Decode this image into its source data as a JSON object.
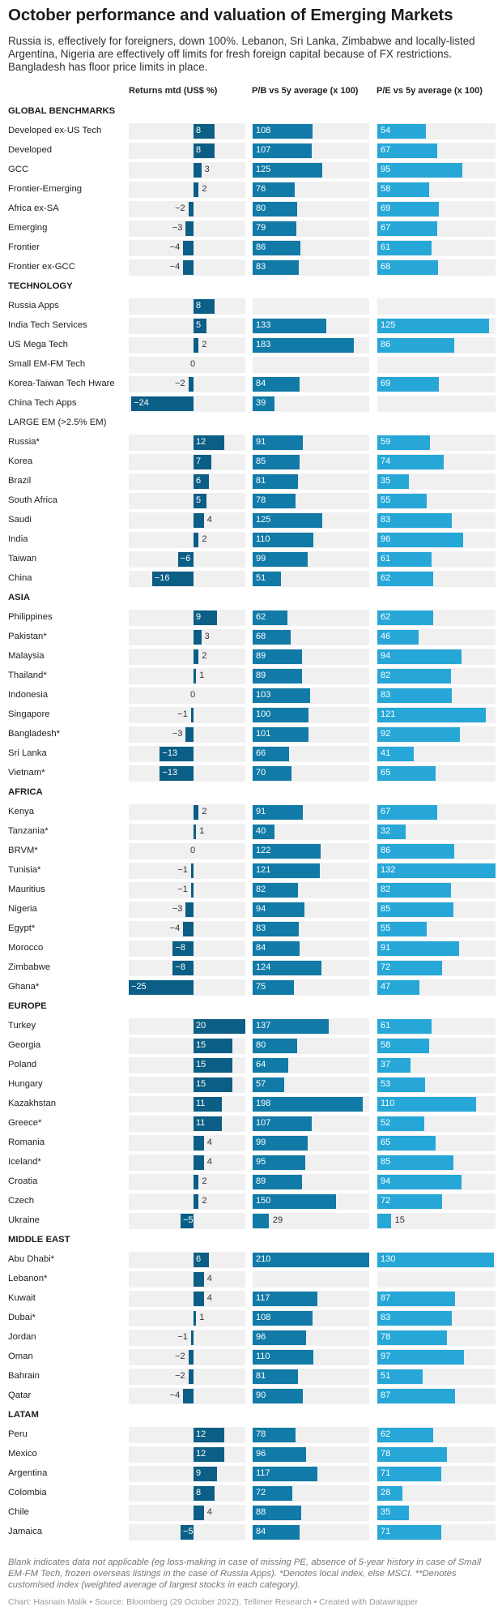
{
  "title": "October performance and valuation of Emerging Markets",
  "subtitle": "Russia is, effectively for foreigners, down 100%. Lebanon, Sri Lanka, Zimbabwe and locally-listed Argentina, Nigeria are effectively off limits for fresh foreign capital because of FX restrictions. Bangladesh has floor price limits in place.",
  "notes": "Blank indicates data not applicable (eg loss-making in case of missing PE, absence of 5-year history in case of Small EM-FM Tech, frozen overseas listings in the case of Russia Apps). *Denotes local index, else MSCI. **Denotes customised index (weighted average of largest stocks in each category).",
  "credit": "Chart: Hasnain Malik • Source: Bloomberg (29 October 2022), Tellimer Research • Created with Datawrapper",
  "colors": {
    "returns_bar": "#0b5e85",
    "pb_bar": "#117aa7",
    "pe_bar": "#26a7d8",
    "cell_bg": "#f0f0f0",
    "value_inside": "#ffffff",
    "value_outside": "#333333"
  },
  "chart_data": {
    "type": "bar",
    "columns": [
      "Returns mtd (US$ %)",
      "P/B vs 5y average (x 100)",
      "P/E vs 5y average (x 100)"
    ],
    "scales": {
      "returns": [
        -25,
        20
      ],
      "pb": [
        0,
        210
      ],
      "pe": [
        0,
        132
      ]
    },
    "rows": [
      {
        "label": "GLOBAL BENCHMARKS",
        "section": true
      },
      {
        "label": "Developed ex-US Tech",
        "ret": 8,
        "pb": 108,
        "pe": 54
      },
      {
        "label": "Developed",
        "ret": 8,
        "pb": 107,
        "pe": 67
      },
      {
        "label": "GCC",
        "ret": 3,
        "pb": 125,
        "pe": 95
      },
      {
        "label": "Frontier-Emerging",
        "ret": 2,
        "pb": 76,
        "pe": 58
      },
      {
        "label": "Africa ex-SA",
        "ret": -2,
        "pb": 80,
        "pe": 69
      },
      {
        "label": "Emerging",
        "ret": -3,
        "pb": 79,
        "pe": 67
      },
      {
        "label": "Frontier",
        "ret": -4,
        "pb": 86,
        "pe": 61
      },
      {
        "label": "Frontier ex-GCC",
        "ret": -4,
        "pb": 83,
        "pe": 68
      },
      {
        "label": "TECHNOLOGY",
        "section": true
      },
      {
        "label": "Russia Apps",
        "ret": 8,
        "pb": null,
        "pe": null
      },
      {
        "label": "India Tech Services",
        "ret": 5,
        "pb": 133,
        "pe": 125
      },
      {
        "label": "US Mega Tech",
        "ret": 2,
        "pb": 183,
        "pe": 86
      },
      {
        "label": "Small EM-FM Tech",
        "ret": 0,
        "pb": null,
        "pe": null
      },
      {
        "label": "Korea-Taiwan Tech Hware",
        "ret": -2,
        "pb": 84,
        "pe": 69
      },
      {
        "label": "China Tech Apps",
        "ret": -24,
        "pb": 39,
        "pe": null
      },
      {
        "label": "LARGE EM (>2.5% EM)",
        "section": true,
        "plain": true
      },
      {
        "label": "Russia*",
        "ret": 12,
        "pb": 91,
        "pe": 59
      },
      {
        "label": "Korea",
        "ret": 7,
        "pb": 85,
        "pe": 74
      },
      {
        "label": "Brazil",
        "ret": 6,
        "pb": 81,
        "pe": 35
      },
      {
        "label": "South Africa",
        "ret": 5,
        "pb": 78,
        "pe": 55
      },
      {
        "label": "Saudi",
        "ret": 4,
        "pb": 125,
        "pe": 83
      },
      {
        "label": "India",
        "ret": 2,
        "pb": 110,
        "pe": 96
      },
      {
        "label": "Taiwan",
        "ret": -6,
        "pb": 99,
        "pe": 61
      },
      {
        "label": "China",
        "ret": -16,
        "pb": 51,
        "pe": 62
      },
      {
        "label": "ASIA",
        "section": true
      },
      {
        "label": "Philippines",
        "ret": 9,
        "pb": 62,
        "pe": 62
      },
      {
        "label": "Pakistan*",
        "ret": 3,
        "pb": 68,
        "pe": 46
      },
      {
        "label": "Malaysia",
        "ret": 2,
        "pb": 89,
        "pe": 94
      },
      {
        "label": "Thailand*",
        "ret": 1,
        "pb": 89,
        "pe": 82
      },
      {
        "label": "Indonesia",
        "ret": 0,
        "pb": 103,
        "pe": 83
      },
      {
        "label": "Singapore",
        "ret": -1,
        "pb": 100,
        "pe": 121
      },
      {
        "label": "Bangladesh*",
        "ret": -3,
        "pb": 101,
        "pe": 92
      },
      {
        "label": "Sri Lanka",
        "ret": -13,
        "pb": 66,
        "pe": 41
      },
      {
        "label": "Vietnam*",
        "ret": -13,
        "pb": 70,
        "pe": 65
      },
      {
        "label": "AFRICA",
        "section": true
      },
      {
        "label": "Kenya",
        "ret": 2,
        "pb": 91,
        "pe": 67
      },
      {
        "label": "Tanzania*",
        "ret": 1,
        "pb": 40,
        "pe": 32
      },
      {
        "label": "BRVM*",
        "ret": 0,
        "pb": 122,
        "pe": 86
      },
      {
        "label": "Tunisia*",
        "ret": -1,
        "pb": 121,
        "pe": 132
      },
      {
        "label": "Mauritius",
        "ret": -1,
        "pb": 82,
        "pe": 82
      },
      {
        "label": "Nigeria",
        "ret": -3,
        "pb": 94,
        "pe": 85
      },
      {
        "label": "Egypt*",
        "ret": -4,
        "pb": 83,
        "pe": 55
      },
      {
        "label": "Morocco",
        "ret": -8,
        "pb": 84,
        "pe": 91
      },
      {
        "label": "Zimbabwe",
        "ret": -8,
        "pb": 124,
        "pe": 72
      },
      {
        "label": "Ghana*",
        "ret": -25,
        "pb": 75,
        "pe": 47
      },
      {
        "label": "EUROPE",
        "section": true
      },
      {
        "label": "Turkey",
        "ret": 20,
        "pb": 137,
        "pe": 61
      },
      {
        "label": "Georgia",
        "ret": 15,
        "pb": 80,
        "pe": 58
      },
      {
        "label": "Poland",
        "ret": 15,
        "pb": 64,
        "pe": 37
      },
      {
        "label": "Hungary",
        "ret": 15,
        "pb": 57,
        "pe": 53
      },
      {
        "label": "Kazakhstan",
        "ret": 11,
        "pb": 198,
        "pe": 110
      },
      {
        "label": "Greece*",
        "ret": 11,
        "pb": 107,
        "pe": 52
      },
      {
        "label": "Romania",
        "ret": 4,
        "pb": 99,
        "pe": 65
      },
      {
        "label": "Iceland*",
        "ret": 4,
        "pb": 95,
        "pe": 85
      },
      {
        "label": "Croatia",
        "ret": 2,
        "pb": 89,
        "pe": 94
      },
      {
        "label": "Czech",
        "ret": 2,
        "pb": 150,
        "pe": 72
      },
      {
        "label": "Ukraine",
        "ret": -5,
        "pb": 29,
        "pe": 15
      },
      {
        "label": "MIDDLE EAST",
        "section": true
      },
      {
        "label": "Abu Dhabi*",
        "ret": 6,
        "pb": 210,
        "pe": 130
      },
      {
        "label": "Lebanon*",
        "ret": 4,
        "pb": null,
        "pe": null
      },
      {
        "label": "Kuwait",
        "ret": 4,
        "pb": 117,
        "pe": 87
      },
      {
        "label": "Dubai*",
        "ret": 1,
        "pb": 108,
        "pe": 83
      },
      {
        "label": "Jordan",
        "ret": -1,
        "pb": 96,
        "pe": 78
      },
      {
        "label": "Oman",
        "ret": -2,
        "pb": 110,
        "pe": 97
      },
      {
        "label": "Bahrain",
        "ret": -2,
        "pb": 81,
        "pe": 51
      },
      {
        "label": "Qatar",
        "ret": -4,
        "pb": 90,
        "pe": 87
      },
      {
        "label": "LATAM",
        "section": true
      },
      {
        "label": "Peru",
        "ret": 12,
        "pb": 78,
        "pe": 62
      },
      {
        "label": "Mexico",
        "ret": 12,
        "pb": 96,
        "pe": 78
      },
      {
        "label": "Argentina",
        "ret": 9,
        "pb": 117,
        "pe": 71
      },
      {
        "label": "Colombia",
        "ret": 8,
        "pb": 72,
        "pe": 28
      },
      {
        "label": "Chile",
        "ret": 4,
        "pb": 88,
        "pe": 35
      },
      {
        "label": "Jamaica",
        "ret": -5,
        "pb": 84,
        "pe": 71
      }
    ]
  }
}
